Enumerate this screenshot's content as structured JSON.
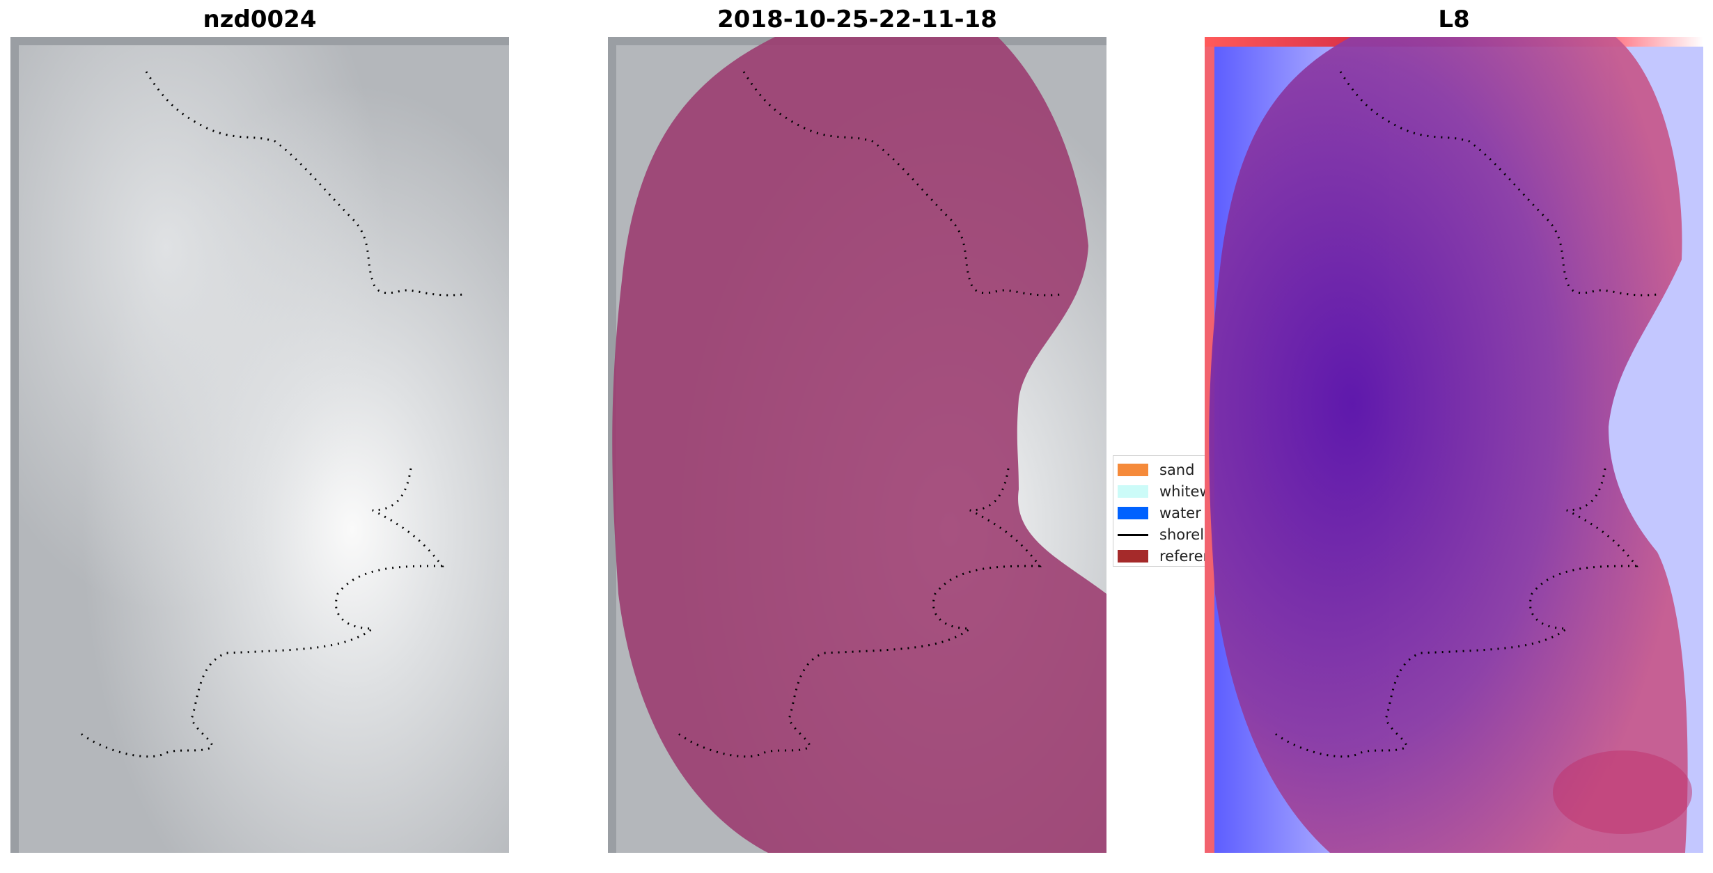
{
  "panels": [
    {
      "title": "nzd0024"
    },
    {
      "title": "2018-10-25-22-11-18"
    },
    {
      "title": "L8"
    }
  ],
  "legend": {
    "items": [
      {
        "label": "sand",
        "color": "#f58a3a"
      },
      {
        "label": "whitewater",
        "color": "#ccfbf8"
      },
      {
        "label": "water",
        "color": "#0062ff"
      },
      {
        "label": "shoreline",
        "color": "#000000"
      },
      {
        "label": "reference",
        "color": "#a52a2a"
      }
    ]
  },
  "colors": {
    "cloud_gray": "#c8ccd0",
    "cloud_mask": "#9b3a6e",
    "l8_blue": "#5a4ee6",
    "l8_red": "#e8303a"
  }
}
